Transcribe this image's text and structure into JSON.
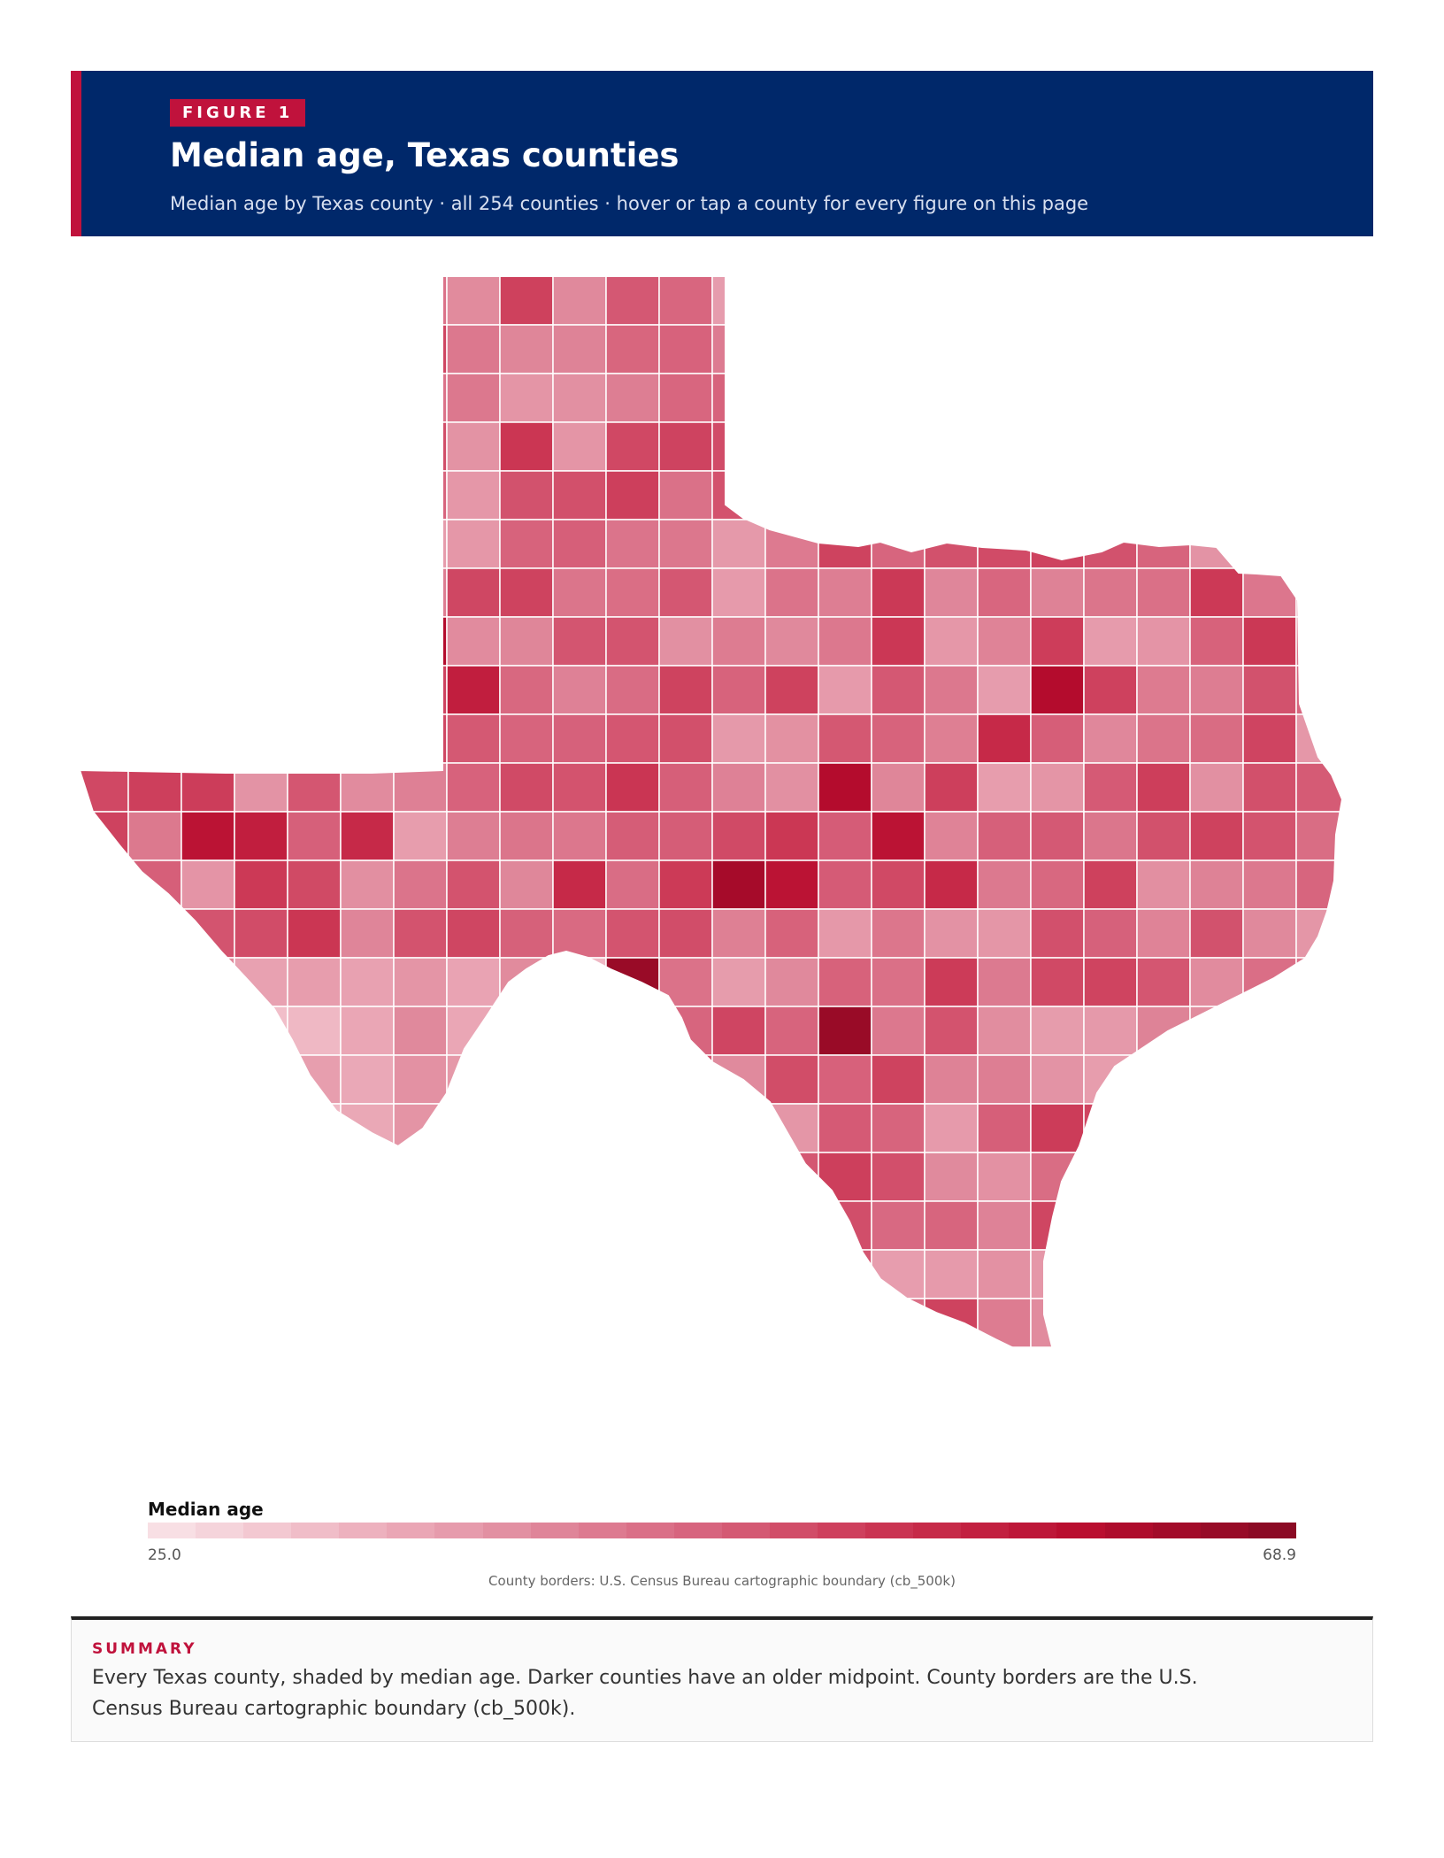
{
  "header": {
    "badge": "FIGURE 1",
    "title": "Median age, Texas counties",
    "subtitle": "Median age by Texas county · all 254 counties · hover or tap a county for every figure on this page"
  },
  "legend": {
    "title": "Median age",
    "min_label": "25.0",
    "max_label": "68.9",
    "min_value": 25.0,
    "max_value": 68.9,
    "low_color": "#f8dfe4",
    "high_color": "#8b0a24"
  },
  "source": "County borders: U.S. Census Bureau cartographic boundary (cb_500k)",
  "summary": {
    "label": "SUMMARY",
    "text": "Every Texas county, shaded by median age. Darker counties have an older midpoint. County borders are the U.S. Census Bureau cartographic boundary (cb_500k)."
  },
  "colors": {
    "header_bg": "#00286a",
    "accent": "#c0123c",
    "border": "#ffffff"
  }
}
